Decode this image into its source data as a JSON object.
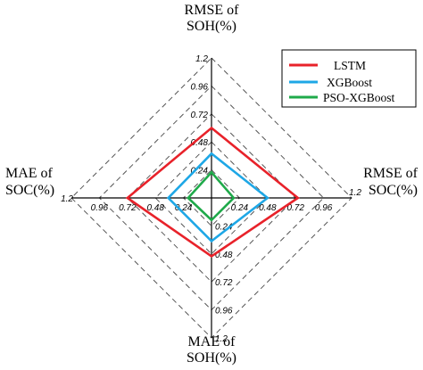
{
  "chart_data": {
    "type": "radar",
    "axes": [
      {
        "id": "top",
        "label_lines": [
          "RMSE of",
          "SOH(%)"
        ]
      },
      {
        "id": "right",
        "label_lines": [
          "RMSE of",
          "SOC(%)"
        ]
      },
      {
        "id": "bottom",
        "label_lines": [
          "MAE of",
          "SOH(%)"
        ]
      },
      {
        "id": "left",
        "label_lines": [
          "MAE of",
          "SOC(%)"
        ]
      }
    ],
    "tick_values": [
      0.24,
      0.48,
      0.72,
      0.96,
      1.2
    ],
    "tick_labels": [
      "0.24",
      "0.48",
      "0.72",
      "0.96",
      "1.2"
    ],
    "range": [
      0,
      1.2
    ],
    "grid": true,
    "legend_position": "top-right",
    "series": [
      {
        "name": "LSTM",
        "color": "#e8222a",
        "values": {
          "top": 0.6,
          "right": 0.74,
          "bottom": 0.5,
          "left": 0.72
        }
      },
      {
        "name": "XGBoost",
        "color": "#1ea7e6",
        "values": {
          "top": 0.38,
          "right": 0.48,
          "bottom": 0.37,
          "left": 0.37
        }
      },
      {
        "name": "PSO-XGBoost",
        "color": "#1faa4a",
        "values": {
          "top": 0.22,
          "right": 0.19,
          "bottom": 0.19,
          "left": 0.2
        }
      }
    ]
  }
}
